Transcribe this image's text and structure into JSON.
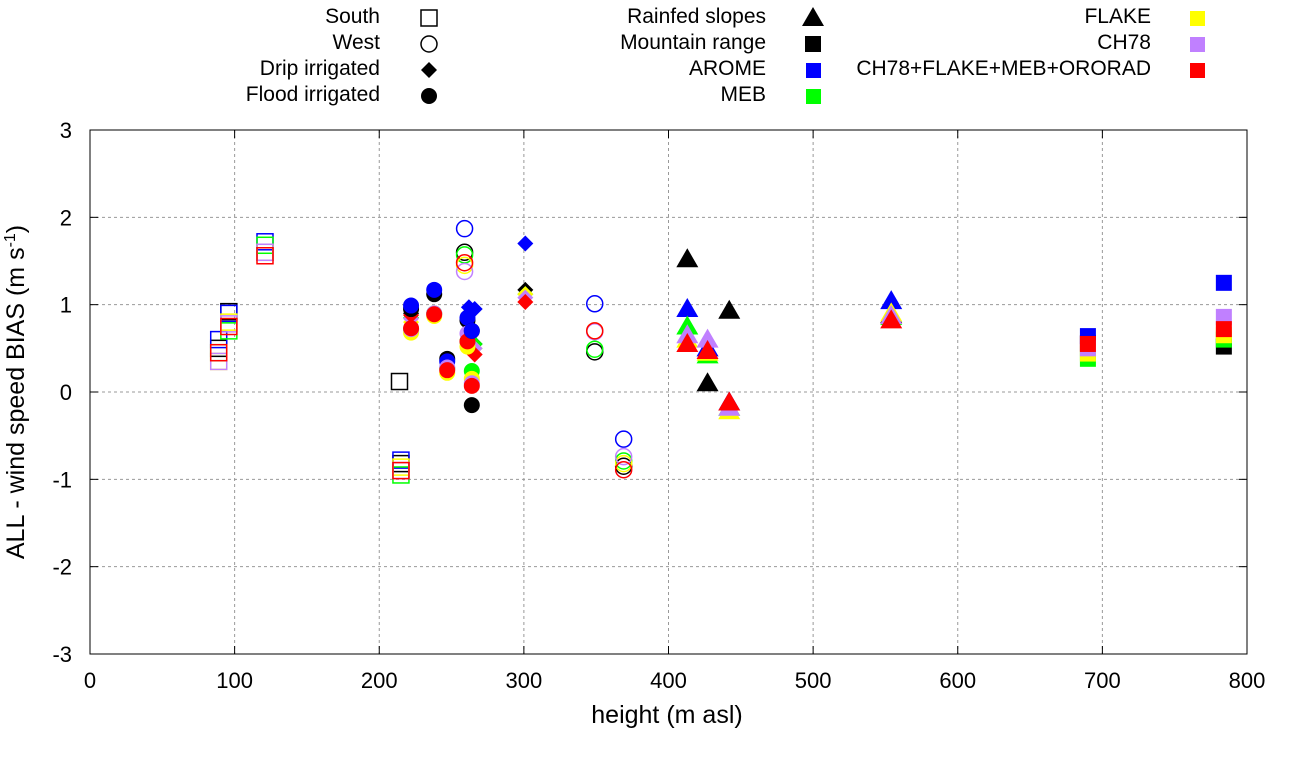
{
  "chart_data": {
    "type": "scatter",
    "title": "",
    "xlabel": "height (m asl)",
    "ylabel": "ALL - wind speed BIAS (m s",
    "ylabel_superscript": "-1",
    "ylabel_suffix": ")",
    "xlim": [
      0,
      800
    ],
    "ylim": [
      -3,
      3
    ],
    "xticks": [
      0,
      100,
      200,
      300,
      400,
      500,
      600,
      700,
      800
    ],
    "yticks": [
      -3,
      -2,
      -1,
      0,
      1,
      2,
      3
    ],
    "grid": true,
    "legend_placement": "top",
    "legend_regions": [
      {
        "label": "South",
        "marker": "open-square"
      },
      {
        "label": "West",
        "marker": "open-circle"
      },
      {
        "label": "Drip irrigated",
        "marker": "diamond"
      },
      {
        "label": "Flood irrigated",
        "marker": "filled-circle"
      },
      {
        "label": "Rainfed slopes",
        "marker": "triangle"
      },
      {
        "label": "Mountain range",
        "marker": "filled-square"
      }
    ],
    "legend_models": [
      {
        "label": "AROME",
        "color": "#0000ff"
      },
      {
        "label": "MEB",
        "color": "#00ff00"
      },
      {
        "label": "FLAKE",
        "color": "#ffff00"
      },
      {
        "label": "CH78",
        "color": "#c080ff"
      },
      {
        "label": "CH78+FLAKE+MEB+ORORAD",
        "color": "#ff0000"
      }
    ],
    "model_order": [
      "AROME",
      "MEB",
      "FLAKE",
      "CH78",
      "CH78+FLAKE+MEB+ORORAD"
    ],
    "observation_color": "#000000",
    "stations": [
      {
        "region": "South",
        "x": 89,
        "obs": 0.5,
        "values": [
          0.6,
          0.45,
          0.35,
          0.35,
          0.45
        ]
      },
      {
        "region": "South",
        "x": 96,
        "obs": 0.92,
        "values": [
          0.9,
          0.7,
          0.8,
          0.78,
          0.75
        ]
      },
      {
        "region": "South",
        "x": 121,
        "obs": 1.6,
        "values": [
          1.72,
          1.68,
          1.6,
          1.6,
          1.56
        ]
      },
      {
        "region": "South",
        "x": 214,
        "obs": 0.12,
        "values": null
      },
      {
        "region": "South",
        "x": 215,
        "obs": -0.82,
        "values": [
          -0.78,
          -0.95,
          -0.86,
          -0.9,
          -0.9
        ]
      },
      {
        "region": "West",
        "x": 259,
        "obs": 1.6,
        "values": [
          1.87,
          1.57,
          1.45,
          1.38,
          1.48
        ]
      },
      {
        "region": "West",
        "x": 349,
        "obs": 0.46,
        "values": [
          1.01,
          0.49,
          0.7,
          0.69,
          0.7
        ]
      },
      {
        "region": "West",
        "x": 369,
        "obs": -0.85,
        "values": [
          -0.54,
          -0.79,
          -0.82,
          -0.74,
          -0.89
        ]
      },
      {
        "region": "Drip irrigated",
        "x": 222,
        "obs": 0.9,
        "values": [
          0.97,
          0.85,
          0.8,
          0.84,
          0.88
        ]
      },
      {
        "region": "Drip irrigated",
        "x": 262,
        "obs": 0.9,
        "values": [
          0.97,
          0.55,
          0.5,
          0.7,
          0.62
        ]
      },
      {
        "region": "Drip irrigated",
        "x": 266,
        "obs": 0.55,
        "values": [
          0.95,
          0.55,
          0.5,
          0.5,
          0.43
        ]
      },
      {
        "region": "Drip irrigated",
        "x": 301,
        "obs": 1.17,
        "values": [
          1.7,
          1.12,
          1.12,
          1.08,
          1.03
        ]
      },
      {
        "region": "Flood irrigated",
        "x": 222,
        "obs": 0.95,
        "values": [
          0.99,
          0.72,
          0.68,
          0.72,
          0.73
        ]
      },
      {
        "region": "Flood irrigated",
        "x": 238,
        "obs": 1.12,
        "values": [
          1.17,
          0.9,
          0.87,
          0.9,
          0.89
        ]
      },
      {
        "region": "Flood irrigated",
        "x": 247,
        "obs": 0.38,
        "values": [
          0.35,
          0.27,
          0.22,
          0.28,
          0.25
        ]
      },
      {
        "region": "Flood irrigated",
        "x": 261,
        "obs": 0.82,
        "values": [
          0.85,
          0.58,
          0.52,
          0.67,
          0.58
        ]
      },
      {
        "region": "Flood irrigated",
        "x": 264,
        "obs": 0.7,
        "values": [
          0.7,
          0.24,
          0.15,
          0.1,
          0.07
        ]
      },
      {
        "region": "Flood irrigated",
        "x": 264,
        "obs": -0.15,
        "values": null
      },
      {
        "region": "Rainfed slopes",
        "x": 413,
        "obs": 1.52,
        "values": [
          0.95,
          0.75,
          0.6,
          0.65,
          0.55
        ]
      },
      {
        "region": "Rainfed slopes",
        "x": 427,
        "obs": 0.1,
        "values": [
          0.5,
          0.42,
          0.45,
          0.6,
          0.47
        ]
      },
      {
        "region": "Rainfed slopes",
        "x": 442,
        "obs": 0.93,
        "values": [
          -0.12,
          -0.18,
          -0.22,
          -0.18,
          -0.12
        ]
      },
      {
        "region": "Rainfed slopes",
        "x": 554,
        "obs": 0.88,
        "values": [
          1.04,
          0.86,
          0.9,
          0.87,
          0.82
        ]
      },
      {
        "region": "Mountain range",
        "x": 690,
        "obs": 0.56,
        "values": [
          0.64,
          0.38,
          0.44,
          0.5,
          0.55
        ]
      },
      {
        "region": "Mountain range",
        "x": 784,
        "obs": 0.52,
        "values": [
          1.25,
          0.6,
          0.65,
          0.86,
          0.72
        ]
      }
    ]
  }
}
